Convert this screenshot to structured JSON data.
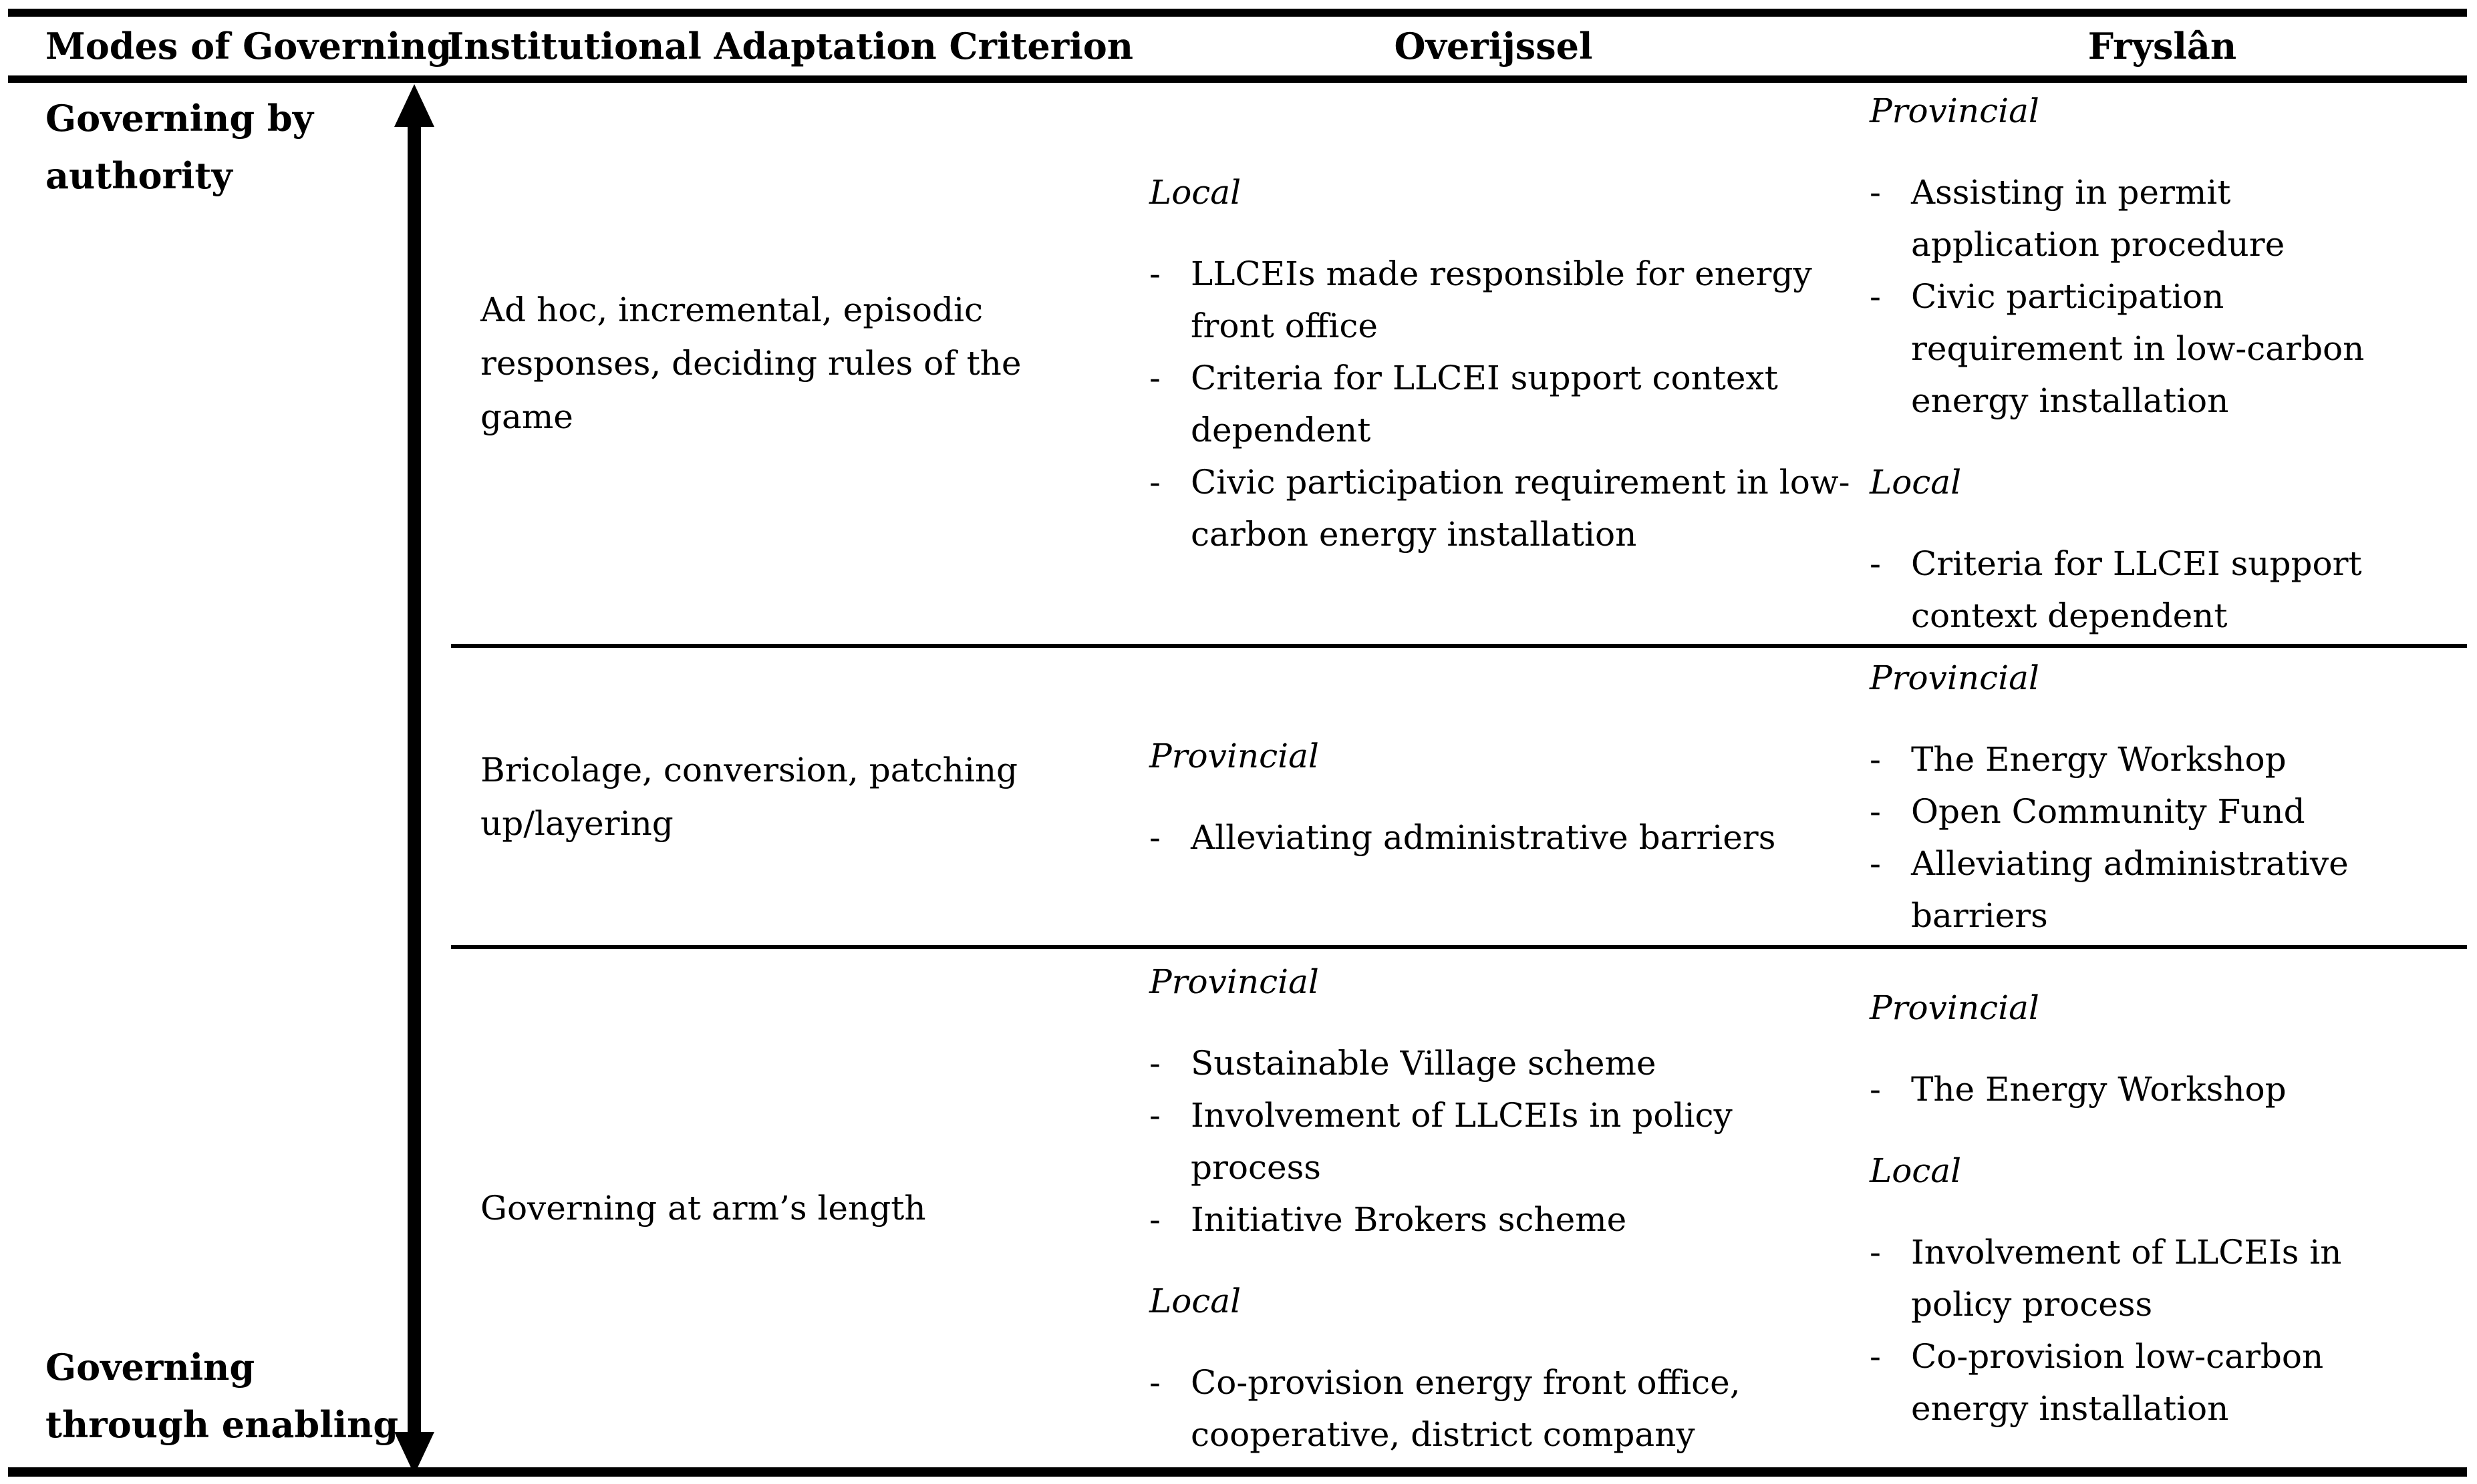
{
  "colors": {
    "text": "#000000",
    "background": "#ffffff",
    "rule": "#000000"
  },
  "bullet_marker": "-",
  "header": {
    "col1": "Modes of Governing",
    "col2": "Institutional Adaptation Criterion",
    "col3": "Overijssel",
    "col4": "Fryslân"
  },
  "modes_axis": {
    "arrow": "vertical-double-headed-arrow",
    "top_label_lines": [
      "Governing by",
      "authority"
    ],
    "bottom_label_lines": [
      "Governing",
      "through enabling"
    ]
  },
  "rows": [
    {
      "criterion": "Ad hoc, incremental, episodic responses, deciding rules of the game",
      "overijssel": {
        "groups": [
          {
            "level": "Local",
            "items": [
              "LLCEIs made responsible for energy front office",
              "Criteria for LLCEI support context dependent",
              "Civic participation requirement in low-carbon energy installation"
            ]
          }
        ]
      },
      "fryslan": {
        "groups": [
          {
            "level": "Provincial",
            "items": [
              "Assisting in permit application procedure",
              "Civic participation requirement in low-carbon energy installation"
            ]
          },
          {
            "level": "Local",
            "items": [
              "Criteria for LLCEI support context dependent"
            ]
          }
        ]
      }
    },
    {
      "criterion": "Bricolage, conversion, patching up/layering",
      "overijssel": {
        "groups": [
          {
            "level": "Provincial",
            "items": [
              "Alleviating administrative barriers"
            ]
          }
        ]
      },
      "fryslan": {
        "groups": [
          {
            "level": "Provincial",
            "items": [
              "The Energy Workshop",
              "Open Community Fund",
              "Alleviating administrative barriers"
            ]
          }
        ]
      }
    },
    {
      "criterion": "Governing at arm’s length",
      "overijssel": {
        "groups": [
          {
            "level": "Provincial",
            "items": [
              "Sustainable Village scheme",
              "Involvement of LLCEIs in policy process",
              "Initiative Brokers scheme"
            ]
          },
          {
            "level": "Local",
            "items": [
              "Co-provision energy front office, cooperative, district company"
            ]
          }
        ]
      },
      "fryslan": {
        "groups": [
          {
            "level": "Provincial",
            "items": [
              "The Energy Workshop"
            ]
          },
          {
            "level": "Local",
            "items": [
              "Involvement of LLCEIs in policy process",
              "Co-provision low-carbon energy installation"
            ]
          }
        ]
      }
    }
  ]
}
